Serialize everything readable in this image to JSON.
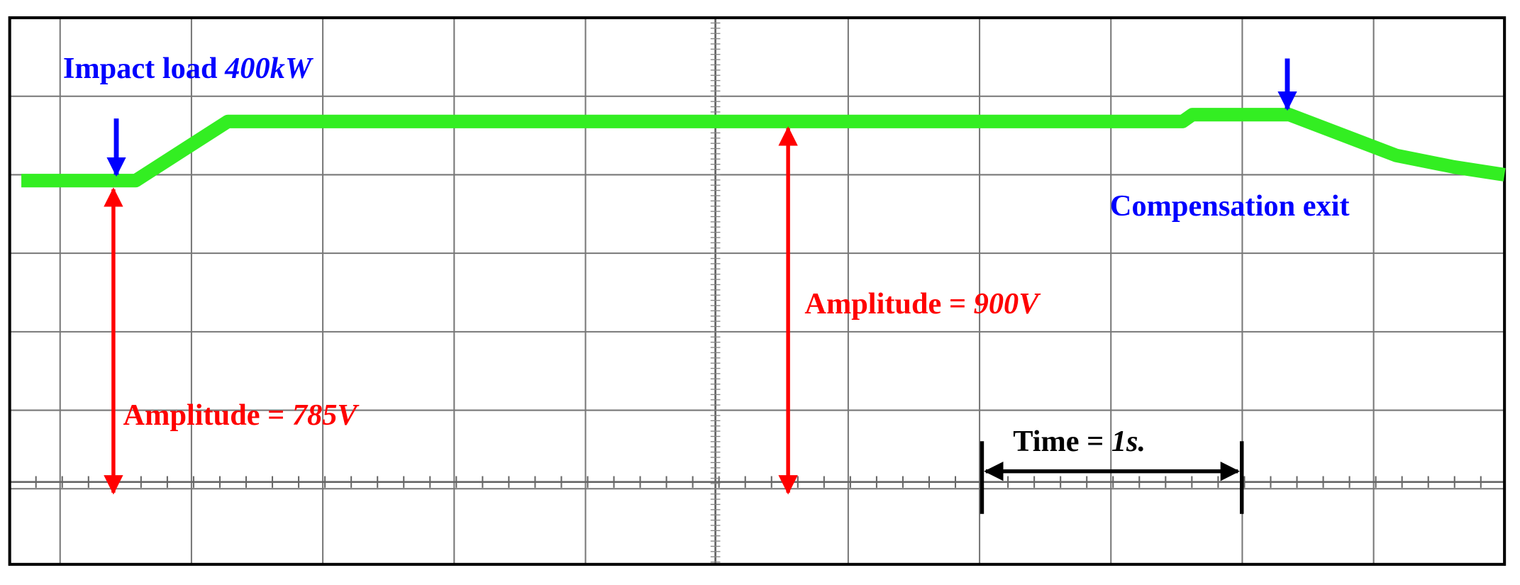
{
  "annotations": {
    "impact_load": {
      "label": "Impact load",
      "value": "400kW"
    },
    "compensation_exit": {
      "label": "Compensation exit"
    },
    "amplitude_left": {
      "label": "Amplitude =",
      "value": "785V"
    },
    "amplitude_right": {
      "label": "Amplitude =",
      "value": "900V"
    },
    "time": {
      "label": "Time =",
      "value": "1s."
    }
  }
}
